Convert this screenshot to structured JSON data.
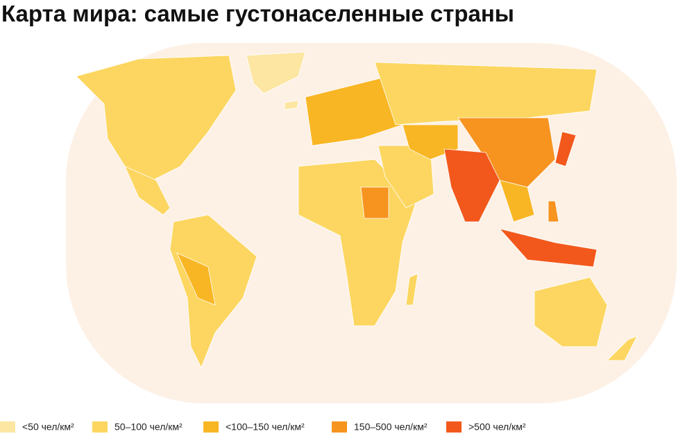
{
  "title": "Карта мира: самые густонаселенные страны",
  "legend": [
    {
      "label": "<50 чел/км²",
      "color": "#fce6a2"
    },
    {
      "label": "50–100 чел/км²",
      "color": "#fcd660"
    },
    {
      "label": "<100–150 чел/км²",
      "color": "#f9b624"
    },
    {
      "label": "150–500 чел/км²",
      "color": "#f7931f"
    },
    {
      "label": ">500 чел/км²",
      "color": "#f2581b"
    }
  ]
}
